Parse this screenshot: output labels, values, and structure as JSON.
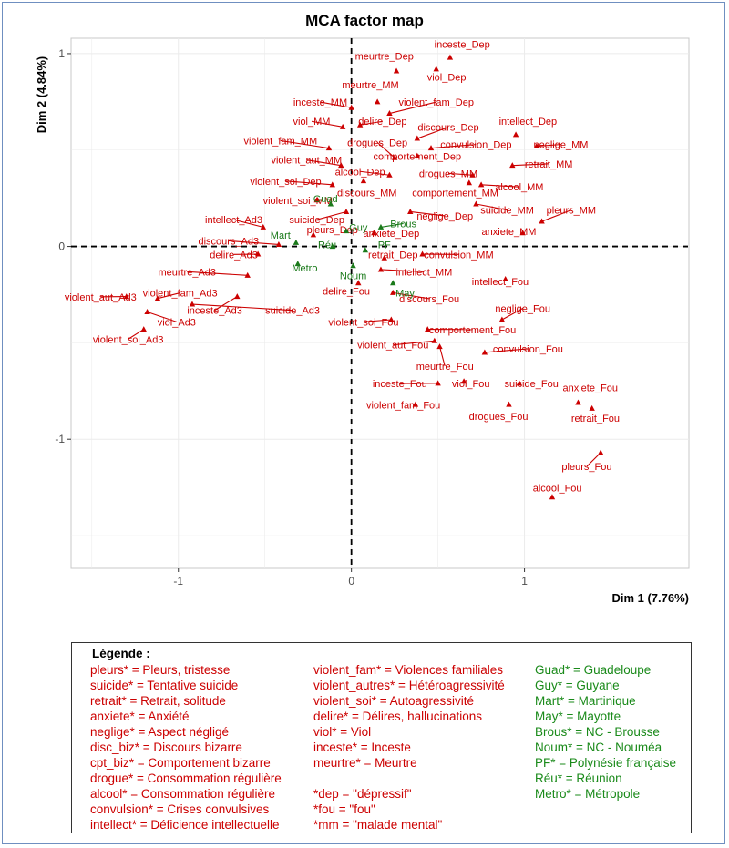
{
  "chart_data": {
    "type": "scatter",
    "title": "MCA factor map",
    "xlabel": "Dim 1 (7.76%)",
    "ylabel": "Dim 2 (4.84%)",
    "xlim": [
      -1.62,
      1.95
    ],
    "ylim": [
      -1.67,
      1.08
    ],
    "xticks": [
      -1,
      0,
      1
    ],
    "yticks": [
      -1,
      0,
      1
    ],
    "grid": true,
    "reference_lines": {
      "x": 0,
      "y": 0,
      "style": "dashed"
    },
    "colors": {
      "variables": "#cc0000",
      "regions": "#1a7a1a"
    },
    "series": [
      {
        "name": "variables",
        "color": "#cc0000",
        "marker": "triangle",
        "points": [
          {
            "label": "inceste_Dep",
            "x": 0.57,
            "y": 0.98,
            "lx": 0.64,
            "ly": 1.03
          },
          {
            "label": "meurtre_Dep",
            "x": 0.26,
            "y": 0.91,
            "lx": 0.19,
            "ly": 0.97
          },
          {
            "label": "viol_Dep",
            "x": 0.49,
            "y": 0.92,
            "lx": 0.55,
            "ly": 0.86
          },
          {
            "label": "meurtre_MM",
            "x": 0.15,
            "y": 0.75,
            "lx": 0.11,
            "ly": 0.82
          },
          {
            "label": "inceste_MM",
            "x": 0.0,
            "y": 0.72,
            "lx": -0.18,
            "ly": 0.73
          },
          {
            "label": "violent_fam_Dep",
            "x": 0.22,
            "y": 0.69,
            "lx": 0.49,
            "ly": 0.73
          },
          {
            "label": "viol_MM",
            "x": -0.05,
            "y": 0.62,
            "lx": -0.23,
            "ly": 0.63
          },
          {
            "label": "delire_Dep",
            "x": 0.05,
            "y": 0.63,
            "lx": 0.18,
            "ly": 0.63
          },
          {
            "label": "intellect_Dep",
            "x": 0.95,
            "y": 0.58,
            "lx": 1.02,
            "ly": 0.63
          },
          {
            "label": "discours_Dep",
            "x": 0.38,
            "y": 0.56,
            "lx": 0.56,
            "ly": 0.6
          },
          {
            "label": "violent_fam_MM",
            "x": -0.13,
            "y": 0.51,
            "lx": -0.41,
            "ly": 0.53
          },
          {
            "label": "drogues_Dep",
            "x": 0.25,
            "y": 0.46,
            "lx": 0.15,
            "ly": 0.52
          },
          {
            "label": "convulsion_Dep",
            "x": 0.46,
            "y": 0.51,
            "lx": 0.72,
            "ly": 0.51
          },
          {
            "label": "neglige_MM",
            "x": 1.07,
            "y": 0.52,
            "lx": 1.21,
            "ly": 0.51
          },
          {
            "label": "violent_aut_MM",
            "x": -0.06,
            "y": 0.42,
            "lx": -0.26,
            "ly": 0.43
          },
          {
            "label": "comportement_Dep",
            "x": 0.38,
            "y": 0.47,
            "lx": 0.38,
            "ly": 0.45
          },
          {
            "label": "retrait_MM",
            "x": 0.93,
            "y": 0.42,
            "lx": 1.14,
            "ly": 0.41
          },
          {
            "label": "alcool_Dep",
            "x": 0.22,
            "y": 0.37,
            "lx": 0.05,
            "ly": 0.37
          },
          {
            "label": "drogues_MM",
            "x": 0.7,
            "y": 0.37,
            "lx": 0.56,
            "ly": 0.36
          },
          {
            "label": "violent_soi_Dep",
            "x": -0.11,
            "y": 0.32,
            "lx": -0.38,
            "ly": 0.32
          },
          {
            "label": "alcool_MM",
            "x": 0.75,
            "y": 0.32,
            "lx": 0.97,
            "ly": 0.29
          },
          {
            "label": "discours_MM",
            "x": 0.07,
            "y": 0.34,
            "lx": 0.09,
            "ly": 0.26
          },
          {
            "label": "comportement_MM",
            "x": 0.68,
            "y": 0.33,
            "lx": 0.6,
            "ly": 0.26
          },
          {
            "label": "violent_soi_MM",
            "x": -0.2,
            "y": 0.24,
            "lx": -0.31,
            "ly": 0.22
          },
          {
            "label": "suicide_MM",
            "x": 0.72,
            "y": 0.22,
            "lx": 0.9,
            "ly": 0.17
          },
          {
            "label": "pleurs_MM",
            "x": 1.1,
            "y": 0.13,
            "lx": 1.27,
            "ly": 0.17
          },
          {
            "label": "suicide_Dep",
            "x": -0.03,
            "y": 0.18,
            "lx": -0.2,
            "ly": 0.12
          },
          {
            "label": "neglige_Dep",
            "x": 0.34,
            "y": 0.18,
            "lx": 0.54,
            "ly": 0.14
          },
          {
            "label": "intellect_Ad3",
            "x": -0.51,
            "y": 0.1,
            "lx": -0.68,
            "ly": 0.12
          },
          {
            "label": "pleurs_Dep",
            "x": -0.22,
            "y": 0.06,
            "lx": -0.11,
            "ly": 0.07
          },
          {
            "label": "anxiete_Dep",
            "x": 0.13,
            "y": 0.07,
            "lx": 0.23,
            "ly": 0.05
          },
          {
            "label": "anxiete_MM",
            "x": 0.99,
            "y": 0.07,
            "lx": 0.91,
            "ly": 0.06
          },
          {
            "label": "discours_Ad3",
            "x": -0.42,
            "y": 0.01,
            "lx": -0.71,
            "ly": 0.01
          },
          {
            "label": "retrait_Dep",
            "x": 0.19,
            "y": -0.06,
            "lx": 0.24,
            "ly": -0.06
          },
          {
            "label": "convulsion_MM",
            "x": 0.41,
            "y": -0.04,
            "lx": 0.62,
            "ly": -0.06
          },
          {
            "label": "delire_Ad3",
            "x": -0.54,
            "y": -0.04,
            "lx": -0.68,
            "ly": -0.06
          },
          {
            "label": "meurtre_Ad3",
            "x": -0.6,
            "y": -0.15,
            "lx": -0.95,
            "ly": -0.15
          },
          {
            "label": "intellect_MM",
            "x": 0.17,
            "y": -0.12,
            "lx": 0.42,
            "ly": -0.15
          },
          {
            "label": "intellect_Fou",
            "x": 0.89,
            "y": -0.17,
            "lx": 0.86,
            "ly": -0.2
          },
          {
            "label": "violent_aut_Ad3",
            "x": -1.3,
            "y": -0.26,
            "lx": -1.45,
            "ly": -0.28
          },
          {
            "label": "violent_fam_Ad3",
            "x": -1.12,
            "y": -0.27,
            "lx": -0.99,
            "ly": -0.26
          },
          {
            "label": "delire_Fou",
            "x": 0.04,
            "y": -0.19,
            "lx": -0.03,
            "ly": -0.25
          },
          {
            "label": "discours_Fou",
            "x": 0.24,
            "y": -0.24,
            "lx": 0.45,
            "ly": -0.29
          },
          {
            "label": "neglige_Fou",
            "x": 0.87,
            "y": -0.38,
            "lx": 0.99,
            "ly": -0.34
          },
          {
            "label": "inceste_Ad3",
            "x": -0.66,
            "y": -0.26,
            "lx": -0.79,
            "ly": -0.35
          },
          {
            "label": "suicide_Ad3",
            "x": -0.92,
            "y": -0.3,
            "lx": -0.34,
            "ly": -0.35
          },
          {
            "label": "viol_Ad3",
            "x": -1.18,
            "y": -0.34,
            "lx": -1.01,
            "ly": -0.41
          },
          {
            "label": "violent_soi_Fou",
            "x": 0.23,
            "y": -0.38,
            "lx": 0.07,
            "ly": -0.41
          },
          {
            "label": "comportement_Fou",
            "x": 0.44,
            "y": -0.43,
            "lx": 0.7,
            "ly": -0.45
          },
          {
            "label": "violent_soi_Ad3",
            "x": -1.2,
            "y": -0.43,
            "lx": -1.29,
            "ly": -0.5
          },
          {
            "label": "convulsion_Fou",
            "x": 0.77,
            "y": -0.55,
            "lx": 1.02,
            "ly": -0.55
          },
          {
            "label": "violent_aut_Fou",
            "x": 0.48,
            "y": -0.49,
            "lx": 0.24,
            "ly": -0.53
          },
          {
            "label": "meurtre_Fou",
            "x": 0.51,
            "y": -0.52,
            "lx": 0.54,
            "ly": -0.64
          },
          {
            "label": "inceste_Fou",
            "x": 0.5,
            "y": -0.71,
            "lx": 0.28,
            "ly": -0.73
          },
          {
            "label": "viol_Fou",
            "x": 0.65,
            "y": -0.7,
            "lx": 0.69,
            "ly": -0.73
          },
          {
            "label": "suicide_Fou",
            "x": 0.97,
            "y": -0.71,
            "lx": 1.04,
            "ly": -0.73
          },
          {
            "label": "anxiete_Fou",
            "x": 1.31,
            "y": -0.81,
            "lx": 1.38,
            "ly": -0.75
          },
          {
            "label": "violent_fam_Fou",
            "x": 0.37,
            "y": -0.82,
            "lx": 0.3,
            "ly": -0.84
          },
          {
            "label": "drogues_Fou",
            "x": 0.91,
            "y": -0.82,
            "lx": 0.85,
            "ly": -0.9
          },
          {
            "label": "retrait_Fou",
            "x": 1.39,
            "y": -0.84,
            "lx": 1.41,
            "ly": -0.91
          },
          {
            "label": "pleurs_Fou",
            "x": 1.44,
            "y": -1.07,
            "lx": 1.36,
            "ly": -1.16
          },
          {
            "label": "alcool_Fou",
            "x": 1.16,
            "y": -1.3,
            "lx": 1.19,
            "ly": -1.27
          }
        ]
      },
      {
        "name": "regions",
        "color": "#1a7a1a",
        "marker": "triangle",
        "points": [
          {
            "label": "Guad",
            "x": -0.12,
            "y": 0.22,
            "lx": -0.15,
            "ly": 0.23
          },
          {
            "label": "Guy",
            "x": -0.03,
            "y": 0.08,
            "lx": 0.04,
            "ly": 0.08
          },
          {
            "label": "Brous",
            "x": 0.17,
            "y": 0.1,
            "lx": 0.3,
            "ly": 0.1
          },
          {
            "label": "Mart",
            "x": -0.32,
            "y": 0.02,
            "lx": -0.41,
            "ly": 0.04
          },
          {
            "label": "Réu",
            "x": -0.11,
            "y": 0.0,
            "lx": -0.14,
            "ly": -0.01
          },
          {
            "label": "PF",
            "x": 0.08,
            "y": -0.02,
            "lx": 0.19,
            "ly": -0.01
          },
          {
            "label": "Metro",
            "x": -0.31,
            "y": -0.09,
            "lx": -0.27,
            "ly": -0.13
          },
          {
            "label": "Noum",
            "x": 0.01,
            "y": -0.1,
            "lx": 0.01,
            "ly": -0.17
          },
          {
            "label": "May",
            "x": 0.24,
            "y": -0.19,
            "lx": 0.31,
            "ly": -0.26
          }
        ]
      }
    ]
  },
  "legend": {
    "title": "Légende :",
    "col1": [
      "pleurs* = Pleurs, tristesse",
      "suicide* = Tentative suicide",
      "retrait* = Retrait, solitude",
      "anxiete* = Anxiété",
      "neglige* = Aspect négligé",
      "disc_biz* = Discours bizarre",
      "cpt_biz* = Comportement bizarre",
      "drogue* = Consommation régulière",
      "alcool* = Consommation régulière",
      "convulsion* = Crises convulsives",
      "intellect* = Déficience intellectuelle"
    ],
    "col2": [
      "violent_fam* = Violences familiales",
      "violent_autres* = Hétéroagressivité",
      "violent_soi* = Autoagressivité",
      "delire* = Délires, hallucinations",
      "viol* = Viol",
      "inceste* = Inceste",
      "meurtre* = Meurtre",
      "",
      "*dep = \"dépressif\"",
      "*fou = \"fou\"",
      "*mm = \"malade mental\""
    ],
    "col3": [
      "Guad* = Guadeloupe",
      "Guy* = Guyane",
      "Mart* = Martinique",
      "May* = Mayotte",
      "Brous* = NC - Brousse",
      "Noum* = NC - Nouméa",
      "PF* = Polynésie française",
      "Réu* = Réunion",
      "Metro* = Métropole"
    ]
  }
}
